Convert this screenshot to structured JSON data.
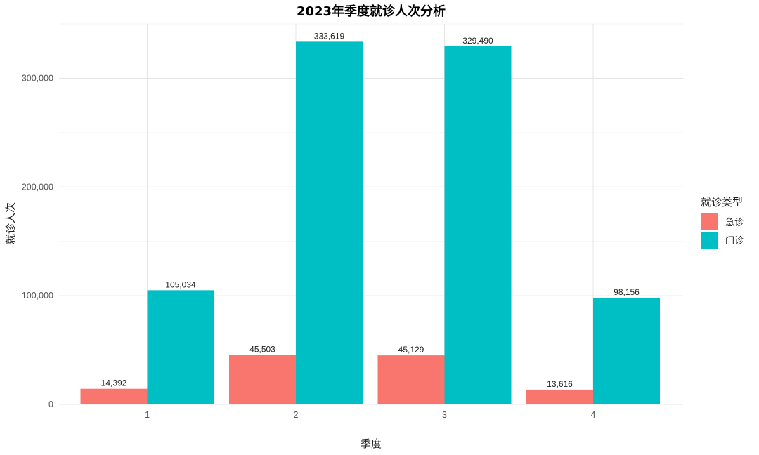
{
  "chart_data": {
    "type": "bar",
    "title": "2023年季度就诊人次分析",
    "xlabel": "季度",
    "ylabel": "就诊人次",
    "categories": [
      "1",
      "2",
      "3",
      "4"
    ],
    "series": [
      {
        "name": "急诊",
        "color": "#F8766D",
        "values": [
          14392,
          45503,
          45129,
          13616
        ],
        "labels": [
          "14,392",
          "45,503",
          "45,129",
          "13,616"
        ]
      },
      {
        "name": "门诊",
        "color": "#00BFC4",
        "values": [
          105034,
          333619,
          329490,
          98156
        ],
        "labels": [
          "105,034",
          "333,619",
          "329,490",
          "98,156"
        ]
      }
    ],
    "ylim": [
      0,
      350000
    ],
    "yticks": [
      0,
      100000,
      200000,
      300000
    ],
    "ytick_labels": [
      "0",
      "100,000",
      "200,000",
      "300,000"
    ],
    "grid": true,
    "legend": {
      "title": "就诊类型",
      "position": "right"
    }
  }
}
